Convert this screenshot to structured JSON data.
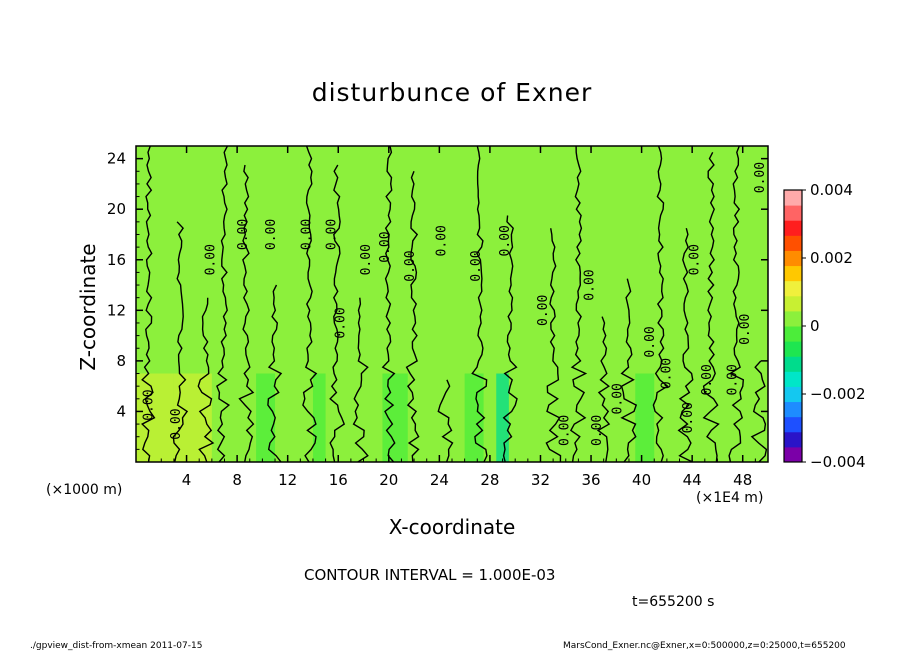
{
  "chart_data": {
    "type": "heatmap",
    "title": "disturbunce of Exner",
    "xlabel": "X-coordinate",
    "ylabel": "Z-coordinate",
    "x_unit_left": "(×1000 m)",
    "x_unit_right": "(×1E4 m)",
    "x_ticks": [
      "4",
      "8",
      "12",
      "16",
      "20",
      "24",
      "28",
      "32",
      "36",
      "40",
      "44",
      "48"
    ],
    "y_ticks": [
      "4",
      "8",
      "12",
      "16",
      "20",
      "24"
    ],
    "xlim": [
      0,
      50
    ],
    "ylim": [
      0,
      25
    ],
    "colorbar": {
      "tick_labels": [
        "0.004",
        "0.002",
        "0",
        "−0.002",
        "−0.004"
      ],
      "range": [
        -0.004,
        0.004
      ],
      "colors": [
        "#7b00a8",
        "#2a14c8",
        "#1e50ff",
        "#1e8cff",
        "#14c8f0",
        "#00e6c8",
        "#00dc8c",
        "#1ee650",
        "#4ced3a",
        "#8cf03c",
        "#c8f032",
        "#f0f03c",
        "#ffc800",
        "#ff8c00",
        "#ff5000",
        "#ff1e1e",
        "#ff6464",
        "#ffaaaa"
      ]
    },
    "contour_interval": "CONTOUR INTERVAL = 1.000E-03",
    "contour_label": "0.00",
    "contour_label_positions": [
      [
        1.3,
        4.5
      ],
      [
        3.5,
        3
      ],
      [
        6.2,
        16
      ],
      [
        8.8,
        18
      ],
      [
        11,
        18
      ],
      [
        13.8,
        18
      ],
      [
        15.8,
        18
      ],
      [
        16.5,
        11
      ],
      [
        18.5,
        16
      ],
      [
        20,
        17
      ],
      [
        22,
        15.5
      ],
      [
        24.5,
        17.5
      ],
      [
        27.2,
        15.5
      ],
      [
        29.5,
        17.5
      ],
      [
        32.5,
        12
      ],
      [
        34.2,
        2.5
      ],
      [
        36.2,
        14
      ],
      [
        36.8,
        2.5
      ],
      [
        38.4,
        5
      ],
      [
        41,
        9.5
      ],
      [
        42.3,
        7
      ],
      [
        44,
        3.5
      ],
      [
        44.5,
        16
      ],
      [
        45.5,
        6.5
      ],
      [
        47.5,
        6.5
      ],
      [
        48.5,
        10.5
      ],
      [
        49.7,
        22.5
      ]
    ],
    "field_bands": [
      {
        "x": [
          0,
          3
        ],
        "value": 0.0006
      },
      {
        "x": [
          3,
          6
        ],
        "value": 0.0008
      },
      {
        "x": [
          9.5,
          11
        ],
        "value": -0.0003
      },
      {
        "x": [
          14,
          15
        ],
        "value": -0.0002
      },
      {
        "x": [
          19.5,
          21.5
        ],
        "value": -0.0002
      },
      {
        "x": [
          26,
          27.5
        ],
        "value": -0.0004
      },
      {
        "x": [
          28.5,
          29.5
        ],
        "value": -0.0012
      },
      {
        "x": [
          39.5,
          41
        ],
        "value": -0.0003
      },
      {
        "x": [
          44.5,
          46
        ],
        "value": 0.0004
      }
    ]
  },
  "annotations": {
    "time": "t=655200 s",
    "footer_left": "./gpview_dist-from-xmean  2011-07-15",
    "footer_right": "MarsCond_Exner.nc@Exner,x=0:500000,z=0:25000,t=655200"
  }
}
